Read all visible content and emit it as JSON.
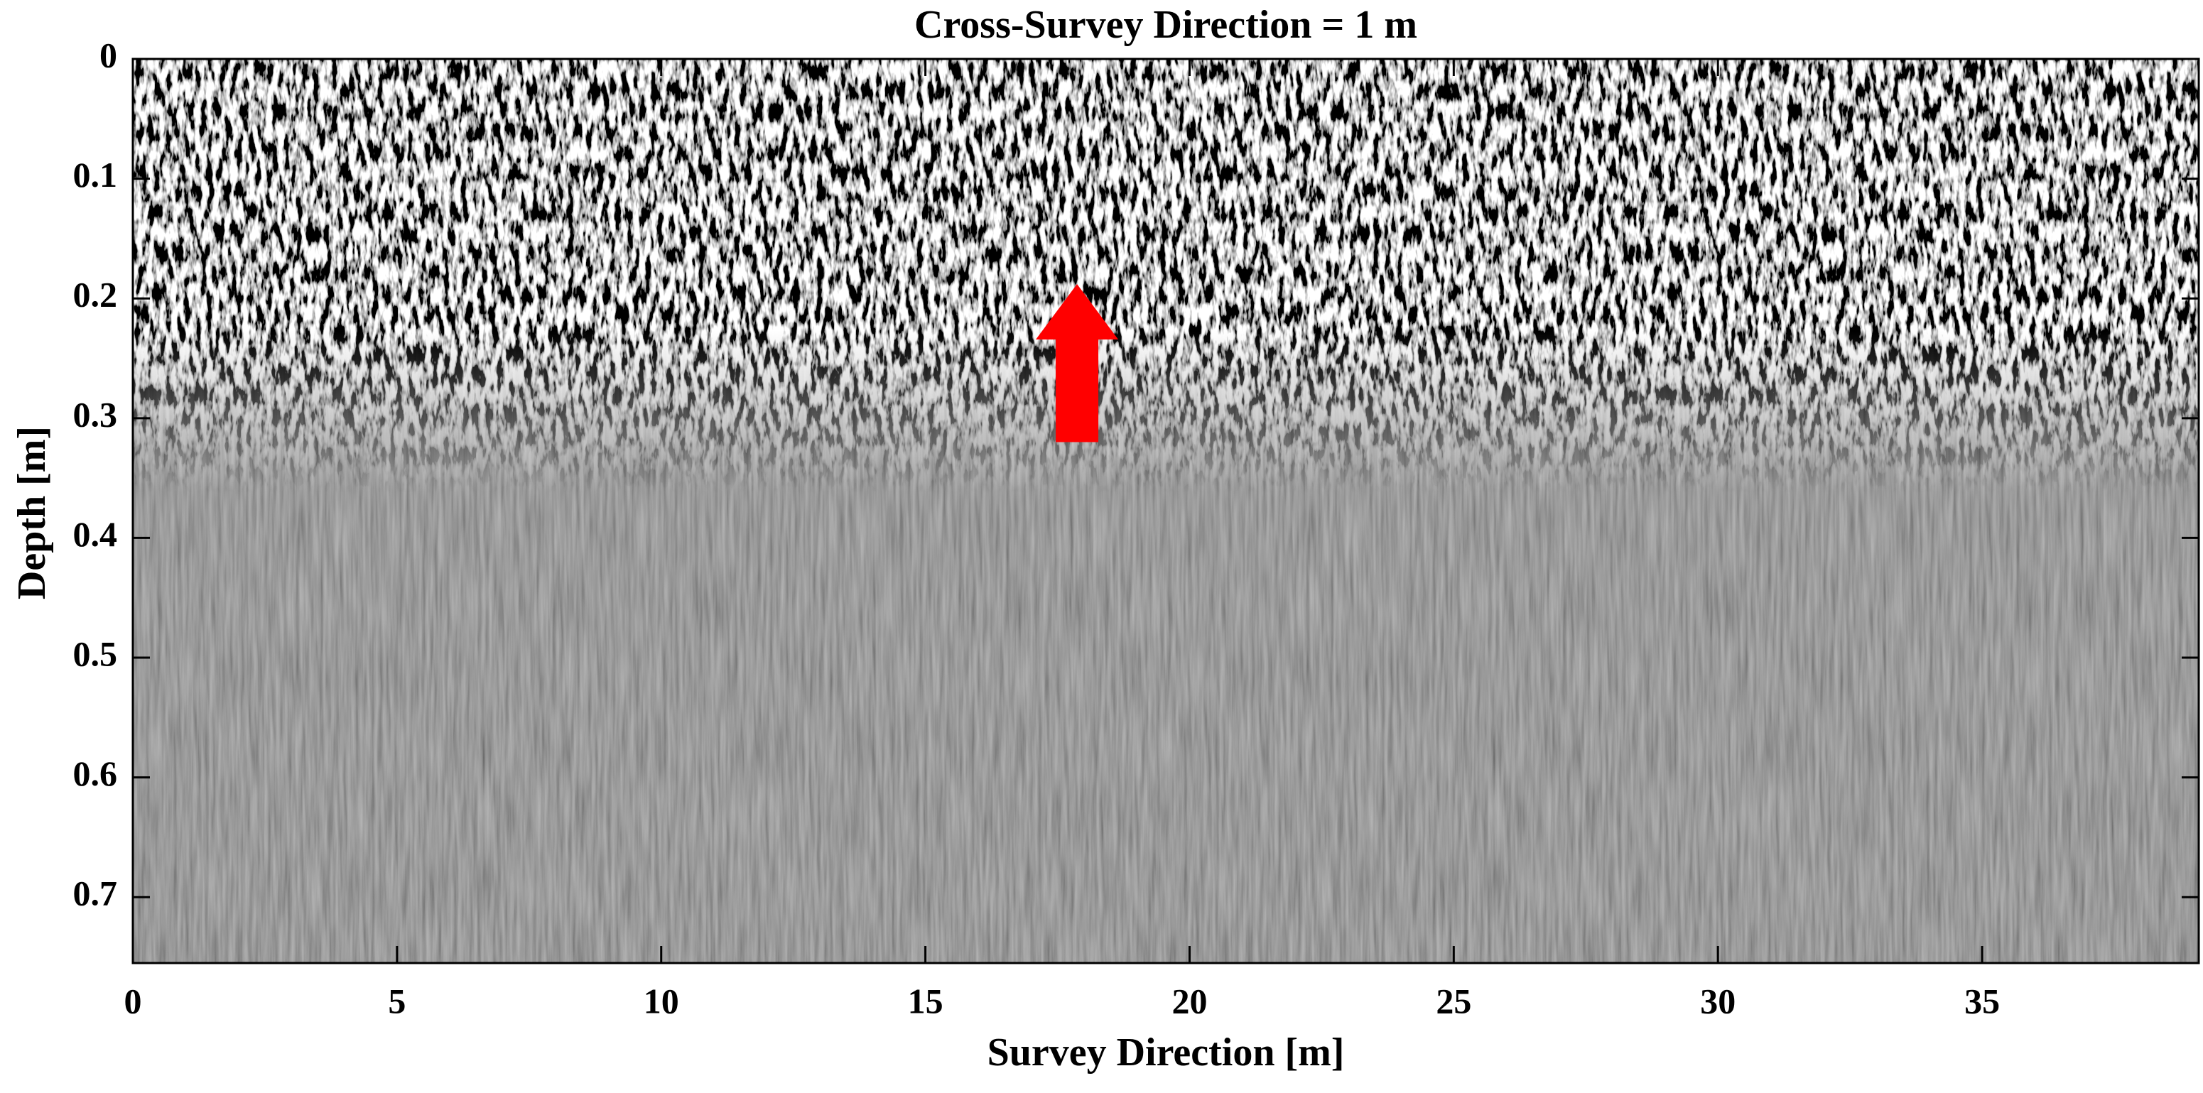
{
  "chart_data": {
    "type": "radargram",
    "title": "Cross-Survey Direction = 1 m",
    "xlabel": "Survey Direction [m]",
    "ylabel": "Depth [m]",
    "xlim": [
      0,
      39.1
    ],
    "xticks": [
      0,
      5,
      10,
      15,
      20,
      25,
      30,
      35
    ],
    "ylim": [
      0,
      0.755
    ],
    "yticks": [
      0,
      0.1,
      0.2,
      0.3,
      0.4,
      0.5,
      0.6,
      0.7
    ],
    "y_reversed": true,
    "arrow": {
      "x": 17.87,
      "y_tail": 0.32,
      "y_tip": 0.188,
      "color": "#ff0000"
    }
  }
}
